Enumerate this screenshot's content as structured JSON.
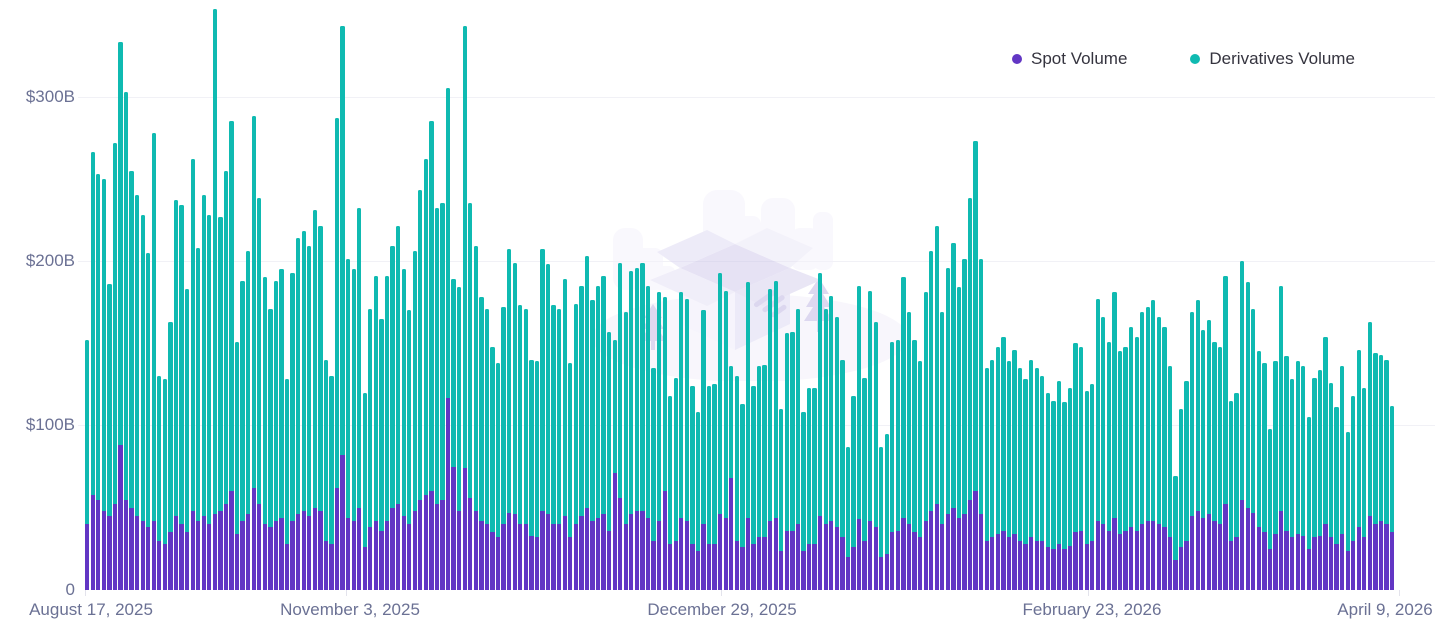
{
  "legend": {
    "items": [
      {
        "label": "Spot Volume",
        "color": "#6236c4"
      },
      {
        "label": "Derivatives Volume",
        "color": "#0fbab1"
      }
    ]
  },
  "y_axis": {
    "tick_labels": [
      "$300B",
      "$200B",
      "$100B",
      "0"
    ]
  },
  "x_axis": {
    "tick_labels": [
      "August 17, 2025",
      "November 3, 2025",
      "December 29, 2025",
      "February 23, 2026",
      "April 9, 2026"
    ]
  },
  "watermark": {
    "name": "empty-open-box-illustration"
  },
  "chart_data": {
    "type": "bar",
    "stacked": true,
    "unit": "USD billions",
    "interval": "daily",
    "start_date": "2025-08-17",
    "end_date": "2026-04-09",
    "ylim": [
      0,
      360
    ],
    "y_gridlines": [
      100,
      200,
      300
    ],
    "grid": true,
    "legend_position": "top-right",
    "x_tick_labels": [
      "August 17, 2025",
      "November 3, 2025",
      "December 29, 2025",
      "February 23, 2026",
      "April 9, 2026"
    ],
    "series": [
      {
        "name": "Spot Volume",
        "color": "#6236c4",
        "values": [
          40,
          58,
          55,
          48,
          45,
          52,
          88,
          55,
          50,
          45,
          42,
          38,
          42,
          30,
          28,
          35,
          45,
          40,
          35,
          48,
          42,
          45,
          40,
          46,
          48,
          52,
          60,
          34,
          42,
          46,
          62,
          52,
          40,
          38,
          42,
          44,
          28,
          42,
          46,
          48,
          45,
          50,
          48,
          30,
          28,
          62,
          82,
          44,
          42,
          50,
          26,
          38,
          42,
          36,
          42,
          50,
          52,
          45,
          40,
          48,
          55,
          58,
          60,
          52,
          55,
          117,
          75,
          48,
          74,
          56,
          48,
          42,
          40,
          35,
          32,
          40,
          47,
          46,
          40,
          40,
          33,
          32,
          48,
          46,
          40,
          40,
          45,
          32,
          40,
          45,
          50,
          42,
          44,
          46,
          36,
          71,
          56,
          40,
          46,
          48,
          48,
          44,
          30,
          42,
          60,
          28,
          30,
          44,
          42,
          28,
          24,
          40,
          28,
          28,
          46,
          44,
          68,
          30,
          26,
          44,
          28,
          32,
          32,
          42,
          44,
          24,
          36,
          36,
          40,
          24,
          28,
          28,
          45,
          40,
          42,
          38,
          32,
          20,
          26,
          43,
          30,
          42,
          38,
          20,
          22,
          35,
          36,
          44,
          40,
          35,
          32,
          42,
          48,
          52,
          40,
          46,
          50,
          44,
          46,
          55,
          60,
          46,
          30,
          32,
          34,
          36,
          32,
          34,
          30,
          28,
          32,
          30,
          30,
          26,
          25,
          28,
          25,
          27,
          35,
          36,
          28,
          30,
          42,
          40,
          36,
          44,
          34,
          36,
          38,
          36,
          40,
          42,
          42,
          40,
          38,
          32,
          18,
          26,
          30,
          45,
          48,
          44,
          46,
          42,
          40,
          52,
          30,
          32,
          55,
          50,
          47,
          38,
          35,
          25,
          34,
          48,
          36,
          32,
          34,
          33,
          25,
          32,
          33,
          40,
          32,
          28,
          34,
          24,
          30,
          38,
          32,
          45,
          40,
          42,
          40,
          35
        ]
      },
      {
        "name": "Derivatives Volume",
        "color": "#0fbab1",
        "values": [
          112,
          208,
          198,
          202,
          141,
          220,
          245,
          248,
          205,
          195,
          186,
          167,
          236,
          100,
          100,
          128,
          192,
          194,
          148,
          214,
          166,
          195,
          188,
          307,
          179,
          203,
          225,
          117,
          146,
          160,
          226,
          186,
          150,
          133,
          146,
          151,
          100,
          151,
          168,
          170,
          164,
          181,
          173,
          110,
          102,
          225,
          261,
          157,
          153,
          182,
          94,
          133,
          149,
          129,
          149,
          159,
          169,
          150,
          130,
          158,
          188,
          204,
          225,
          180,
          180,
          188,
          114,
          136,
          269,
          179,
          161,
          136,
          131,
          113,
          106,
          132,
          160,
          153,
          133,
          131,
          107,
          107,
          159,
          152,
          133,
          131,
          144,
          106,
          134,
          140,
          153,
          134,
          141,
          145,
          121,
          81,
          143,
          129,
          148,
          148,
          151,
          141,
          105,
          139,
          118,
          90,
          99,
          137,
          135,
          96,
          84,
          130,
          96,
          97,
          147,
          138,
          68,
          100,
          87,
          143,
          96,
          104,
          105,
          141,
          144,
          86,
          120,
          121,
          131,
          84,
          95,
          95,
          148,
          131,
          137,
          128,
          108,
          67,
          92,
          142,
          99,
          140,
          125,
          67,
          73,
          116,
          116,
          146,
          129,
          117,
          107,
          139,
          158,
          169,
          129,
          150,
          161,
          140,
          155,
          183,
          213,
          155,
          105,
          108,
          114,
          118,
          107,
          112,
          105,
          100,
          108,
          105,
          100,
          94,
          90,
          99,
          89,
          96,
          115,
          112,
          93,
          95,
          135,
          126,
          115,
          137,
          111,
          112,
          122,
          118,
          129,
          130,
          134,
          126,
          122,
          104,
          51,
          84,
          97,
          124,
          128,
          114,
          118,
          109,
          108,
          139,
          85,
          88,
          145,
          137,
          124,
          107,
          103,
          73,
          105,
          137,
          106,
          96,
          105,
          103,
          80,
          97,
          101,
          114,
          94,
          83,
          102,
          72,
          88,
          108,
          91,
          118,
          104,
          101,
          100,
          77
        ]
      }
    ]
  }
}
